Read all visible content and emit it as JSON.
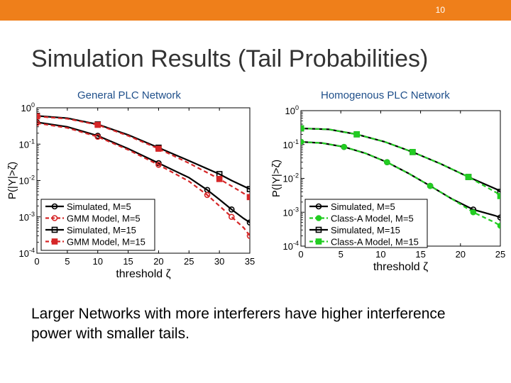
{
  "slide": {
    "number": "10",
    "title": "Simulation Results (Tail Probabilities)",
    "body": "Larger Networks with more interferers have higher interference power with smaller tails."
  },
  "colors": {
    "accent_bar": "#ef7f1a",
    "caption": "#1f4f8a",
    "sim": "#000000",
    "gmm": "#d62728",
    "classA": "#22cc22"
  },
  "chart_data": [
    {
      "type": "line",
      "caption": "General PLC Network",
      "xlabel": "threshold ζ",
      "ylabel": "P(|Y|>ζ)",
      "xlim": [
        0,
        35
      ],
      "ylim_log10": [
        -4,
        0
      ],
      "y_scale": "log",
      "xticks": [
        "0",
        "5",
        "10",
        "15",
        "20",
        "25",
        "30",
        "35"
      ],
      "yticks": [
        "10^0",
        "10^-1",
        "10^-2",
        "10^-3",
        "10^-4"
      ],
      "legend_position": "bottom-left",
      "series": [
        {
          "name": "Simulated, M=5",
          "color": "#000000",
          "dash": false,
          "marker": "circle-open",
          "x": [
            0,
            5,
            10,
            15,
            20,
            25,
            28,
            30,
            32,
            34,
            35
          ],
          "y": [
            0.4,
            0.3,
            0.17,
            0.075,
            0.03,
            0.012,
            0.0055,
            0.003,
            0.0016,
            0.0009,
            0.0007
          ]
        },
        {
          "name": "GMM Model, M=5",
          "color": "#d62728",
          "dash": true,
          "marker": "circle-open",
          "x": [
            0,
            5,
            10,
            15,
            20,
            25,
            28,
            30,
            32,
            34,
            35
          ],
          "y": [
            0.38,
            0.28,
            0.16,
            0.07,
            0.027,
            0.0095,
            0.004,
            0.002,
            0.001,
            0.0005,
            0.0003
          ]
        },
        {
          "name": "Simulated, M=15",
          "color": "#000000",
          "dash": false,
          "marker": "square-open",
          "x": [
            0,
            5,
            10,
            15,
            20,
            25,
            30,
            32,
            35
          ],
          "y": [
            0.6,
            0.52,
            0.35,
            0.18,
            0.08,
            0.035,
            0.015,
            0.01,
            0.0058
          ]
        },
        {
          "name": "GMM Model, M=15",
          "color": "#d62728",
          "dash": true,
          "marker": "square-filled",
          "x": [
            0,
            5,
            10,
            15,
            20,
            25,
            30,
            32,
            35
          ],
          "y": [
            0.58,
            0.5,
            0.34,
            0.17,
            0.075,
            0.03,
            0.011,
            0.007,
            0.0035
          ]
        }
      ]
    },
    {
      "type": "line",
      "caption": "Homogenous PLC Network",
      "xlabel": "threshold ζ",
      "ylabel": "P(|Y|>ζ)",
      "xlim": [
        0,
        25
      ],
      "ylim_log10": [
        -4,
        0
      ],
      "y_scale": "log",
      "xticks": [
        "0",
        "5",
        "10",
        "15",
        "20",
        "25"
      ],
      "yticks": [
        "10^0",
        "10^-1",
        "10^-2",
        "10^-3",
        "10^-4"
      ],
      "legend_position": "bottom-left",
      "series": [
        {
          "name": "Simulated, M=5",
          "color": "#000000",
          "dash": false,
          "marker": "circle-open",
          "x": [
            0,
            2.7,
            5.4,
            8.1,
            10.8,
            13.5,
            16.2,
            18.9,
            21.6,
            24.3,
            25
          ],
          "y": [
            0.12,
            0.11,
            0.085,
            0.055,
            0.03,
            0.014,
            0.006,
            0.0025,
            0.0012,
            0.0008,
            0.0007
          ]
        },
        {
          "name": "Class-A Model, M=5",
          "color": "#22cc22",
          "dash": true,
          "marker": "circle-filled",
          "x": [
            0,
            2.7,
            5.4,
            8.1,
            10.8,
            13.5,
            16.2,
            18.9,
            21.6,
            24.3,
            25
          ],
          "y": [
            0.12,
            0.11,
            0.085,
            0.055,
            0.03,
            0.014,
            0.006,
            0.0025,
            0.001,
            0.0005,
            0.0004
          ]
        },
        {
          "name": "Simulated, M=15",
          "color": "#000000",
          "dash": false,
          "marker": "square-open",
          "x": [
            0,
            3.5,
            7,
            10.5,
            14,
            17.5,
            21,
            24.5,
            25
          ],
          "y": [
            0.3,
            0.28,
            0.2,
            0.12,
            0.06,
            0.027,
            0.011,
            0.0048,
            0.004
          ]
        },
        {
          "name": "Class-A Model, M=15",
          "color": "#22cc22",
          "dash": true,
          "marker": "square-filled",
          "x": [
            0,
            3.5,
            7,
            10.5,
            14,
            17.5,
            21,
            24.5,
            25
          ],
          "y": [
            0.3,
            0.28,
            0.2,
            0.12,
            0.06,
            0.027,
            0.011,
            0.0038,
            0.003
          ]
        }
      ]
    }
  ]
}
